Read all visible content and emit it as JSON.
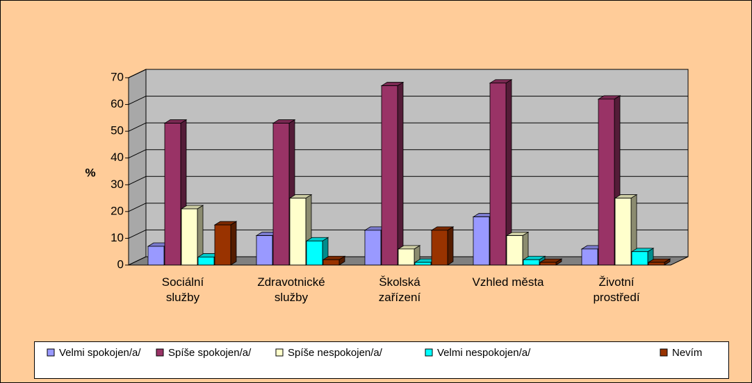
{
  "chart_data": {
    "type": "bar3d",
    "ylabel": "%",
    "categories": [
      "Sociální\nslužby",
      "Zdravotnické\nslužby",
      "Školská\nzařízení",
      "Vzhled města",
      "Životní\nprostředí"
    ],
    "series": [
      {
        "name": "Velmi spokojen/a/",
        "color": "#9999ff",
        "values": [
          7,
          11,
          13,
          18,
          6
        ]
      },
      {
        "name": "Spíše spokojen/a/",
        "color": "#993366",
        "values": [
          53,
          53,
          67,
          68,
          62
        ]
      },
      {
        "name": "Spíše nespokojen/a/",
        "color": "#ffffcc",
        "values": [
          21,
          25,
          6,
          11,
          25
        ]
      },
      {
        "name": "Velmi nespokojen/a/",
        "color": "#00ffff",
        "values": [
          3,
          9,
          1,
          2,
          5
        ]
      },
      {
        "name": "Nevím",
        "color": "#993300",
        "values": [
          15,
          2,
          13,
          1,
          1
        ]
      }
    ],
    "ylim": [
      0,
      70
    ],
    "yticks": [
      0,
      10,
      20,
      30,
      40,
      50,
      60,
      70
    ],
    "grid": true,
    "legend": "bottom"
  }
}
